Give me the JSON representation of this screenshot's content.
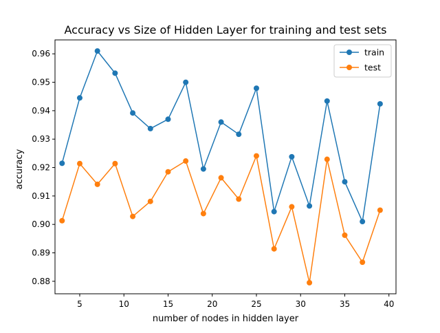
{
  "chart_data": {
    "type": "line",
    "title": "Accuracy vs Size of Hidden Layer for training and test sets",
    "xlabel": "number of nodes in hidden layer",
    "ylabel": "accuracy",
    "xlim": [
      2.2,
      40.8
    ],
    "ylim": [
      0.8756,
      0.9649
    ],
    "xticks": [
      5,
      10,
      15,
      20,
      25,
      30,
      35,
      40
    ],
    "xtick_labels": [
      "5",
      "10",
      "15",
      "20",
      "25",
      "30",
      "35",
      "40"
    ],
    "yticks": [
      0.88,
      0.89,
      0.9,
      0.91,
      0.92,
      0.93,
      0.94,
      0.95,
      0.96
    ],
    "ytick_labels": [
      "0.88",
      "0.89",
      "0.90",
      "0.91",
      "0.92",
      "0.93",
      "0.94",
      "0.95",
      "0.96"
    ],
    "grid": false,
    "legend": {
      "position": "top-right",
      "entries": [
        "train",
        "test"
      ]
    },
    "x": [
      3,
      5,
      7,
      9,
      11,
      13,
      15,
      17,
      19,
      21,
      23,
      25,
      27,
      29,
      31,
      33,
      35,
      37,
      39
    ],
    "series": [
      {
        "name": "train",
        "color": "#1f77b4",
        "values": [
          0.9215,
          0.9445,
          0.961,
          0.9532,
          0.9392,
          0.9337,
          0.937,
          0.95,
          0.9195,
          0.936,
          0.9317,
          0.9479,
          0.9045,
          0.9238,
          0.9065,
          0.9434,
          0.915,
          0.901,
          0.9424
        ]
      },
      {
        "name": "test",
        "color": "#ff7f0e",
        "values": [
          0.9013,
          0.9214,
          0.9141,
          0.9214,
          0.9028,
          0.9081,
          0.9185,
          0.9223,
          0.9038,
          0.9164,
          0.9089,
          0.9241,
          0.8914,
          0.9062,
          0.8795,
          0.9229,
          0.8962,
          0.8867,
          0.905
        ]
      }
    ]
  }
}
